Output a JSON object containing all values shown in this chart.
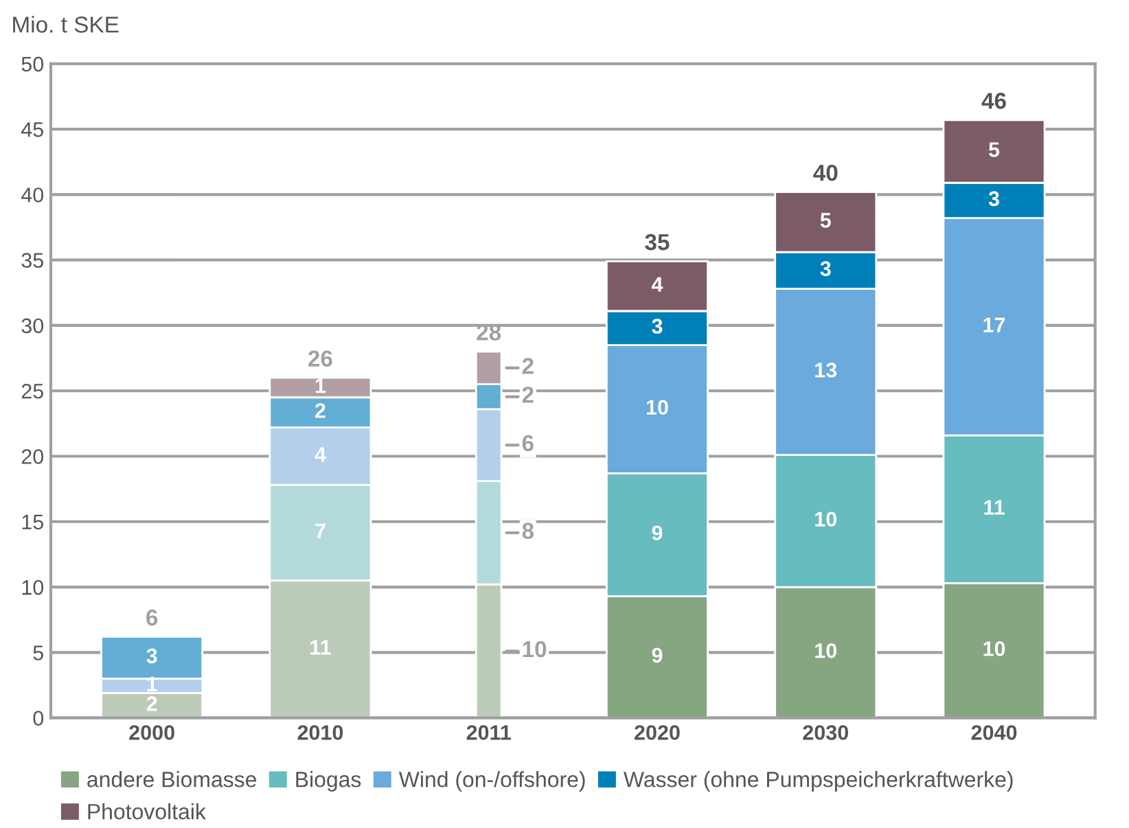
{
  "chart_data": {
    "type": "bar",
    "stacked": true,
    "ylabel": "Mio. t SKE",
    "categories": [
      "2000",
      "2010",
      "2011",
      "2020",
      "2030",
      "2040"
    ],
    "series": [
      {
        "name": "andere Biomasse",
        "color": "#86a682",
        "colors": [
          "#bccbb8",
          "#bccbb8",
          "#bccbb8",
          "#86a682",
          "#86a682",
          "#86a682"
        ],
        "values": [
          1.9,
          10.5,
          10.2,
          9.3,
          10.0,
          10.3
        ],
        "value_labels": [
          "2",
          "11",
          "10",
          "9",
          "10",
          "10"
        ]
      },
      {
        "name": "Biogas",
        "color": "#66bcbf",
        "colors": [
          "#b3dadb",
          "#b3dadb",
          "#b3dadb",
          "#66bcbf",
          "#66bcbf",
          "#66bcbf"
        ],
        "values": [
          0,
          7.3,
          7.9,
          9.4,
          10.1,
          11.3
        ],
        "value_labels": [
          null,
          "7",
          "8",
          "9",
          "10",
          "11"
        ]
      },
      {
        "name": "Wind (on-/offshore)",
        "color": "#6aaadc",
        "colors": [
          "#b3cfec",
          "#b3cfec",
          "#b3cfec",
          "#6aaadc",
          "#6aaadc",
          "#6aaadc"
        ],
        "values": [
          1.1,
          4.4,
          5.5,
          9.8,
          12.7,
          16.6
        ],
        "value_labels": [
          "1",
          "4",
          "6",
          "10",
          "13",
          "17"
        ]
      },
      {
        "name": "Wasser (ohne Pumpspeicherkraftwerke)",
        "color": "#0080b8",
        "colors": [
          "#62aed5",
          "#62aed5",
          "#62aed5",
          "#0080b8",
          "#0080b8",
          "#0080b8"
        ],
        "values": [
          3.2,
          2.3,
          1.9,
          2.6,
          2.8,
          2.7
        ],
        "value_labels": [
          "3",
          "2",
          "2",
          "3",
          "3",
          "3"
        ]
      },
      {
        "name": "Photovoltaik",
        "color": "#7b5c66",
        "colors": [
          "#b39fa3",
          "#b39fa3",
          "#b39fa3",
          "#7b5c66",
          "#7b5c66",
          "#7b5c66"
        ],
        "values": [
          0,
          1.5,
          2.5,
          3.8,
          4.6,
          4.8
        ],
        "value_labels": [
          null,
          "1",
          "2",
          "4",
          "5",
          "5"
        ]
      }
    ],
    "totals": [
      "6",
      "26",
      "28",
      "35",
      "40",
      "46"
    ],
    "ylim": [
      0,
      50
    ],
    "yticks": [
      0,
      5,
      10,
      15,
      20,
      25,
      30,
      35,
      40,
      45,
      50
    ],
    "grid": "y",
    "legend": "bottom"
  }
}
